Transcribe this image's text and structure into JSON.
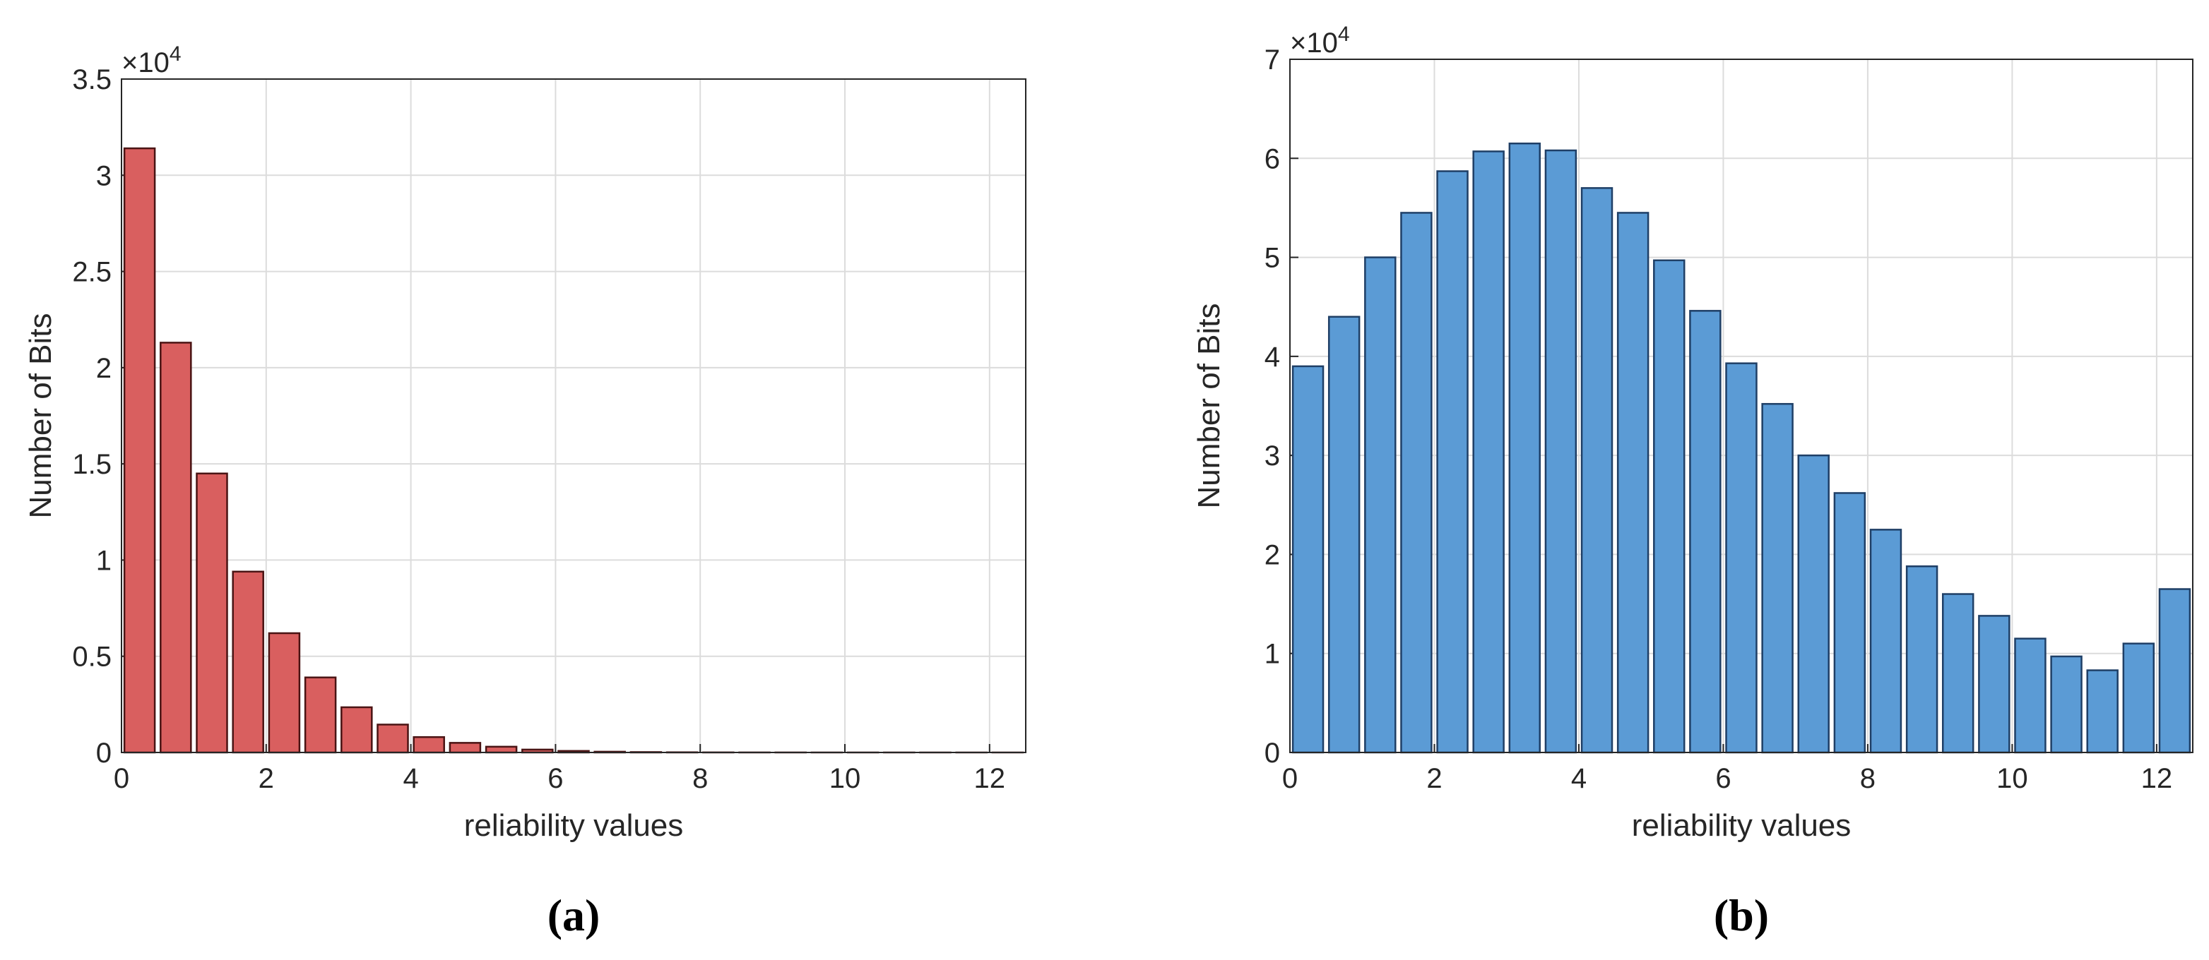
{
  "chart_data": [
    {
      "type": "bar",
      "caption": "(a)",
      "xlabel": "reliability values",
      "ylabel": "Number of Bits",
      "y_exponent": {
        "base": "×10",
        "power": "4"
      },
      "x": [
        0.25,
        0.75,
        1.25,
        1.75,
        2.25,
        2.75,
        3.25,
        3.75,
        4.25,
        4.75,
        5.25,
        5.75,
        6.25,
        6.75,
        7.25,
        7.75,
        8.25,
        8.75,
        9.25,
        9.75,
        10.25,
        10.75,
        11.25,
        11.75,
        12.25
      ],
      "values": [
        3.14,
        2.13,
        1.45,
        0.94,
        0.62,
        0.39,
        0.235,
        0.145,
        0.08,
        0.05,
        0.03,
        0.015,
        0.008,
        0.004,
        0.002,
        0.001,
        0.0005,
        0.0003,
        0.0002,
        0.0001,
        0.0001,
        0.0001,
        5e-05,
        3e-05,
        2e-05
      ],
      "color": "#d95f5f",
      "edge_color": "#4a1414",
      "xlim": [
        0,
        12.5
      ],
      "xticks": [
        0,
        2,
        4,
        6,
        8,
        10,
        12
      ],
      "ylim": [
        0,
        3.5
      ],
      "yticks": [
        0,
        0.5,
        1,
        1.5,
        2,
        2.5,
        3,
        3.5
      ],
      "grid": true
    },
    {
      "type": "bar",
      "caption": "(b)",
      "xlabel": "reliability values",
      "ylabel": "Number of Bits",
      "y_exponent": {
        "base": "×10",
        "power": "4"
      },
      "x": [
        0.25,
        0.75,
        1.25,
        1.75,
        2.25,
        2.75,
        3.25,
        3.75,
        4.25,
        4.75,
        5.25,
        5.75,
        6.25,
        6.75,
        7.25,
        7.75,
        8.25,
        8.75,
        9.25,
        9.75,
        10.25,
        10.75,
        11.25,
        11.75,
        12.25
      ],
      "values": [
        3.9,
        4.4,
        5.0,
        5.45,
        5.87,
        6.07,
        6.15,
        6.08,
        5.7,
        5.45,
        4.97,
        4.46,
        3.93,
        3.52,
        3.0,
        2.62,
        2.25,
        1.88,
        1.6,
        1.38,
        1.15,
        0.97,
        0.83,
        1.1,
        1.65
      ],
      "color": "#5b9bd5",
      "edge_color": "#1f3f66",
      "xlim": [
        0,
        12.5
      ],
      "xticks": [
        0,
        2,
        4,
        6,
        8,
        10,
        12
      ],
      "ylim": [
        0,
        7
      ],
      "yticks": [
        0,
        1,
        2,
        3,
        4,
        5,
        6,
        7
      ],
      "grid": true
    }
  ]
}
